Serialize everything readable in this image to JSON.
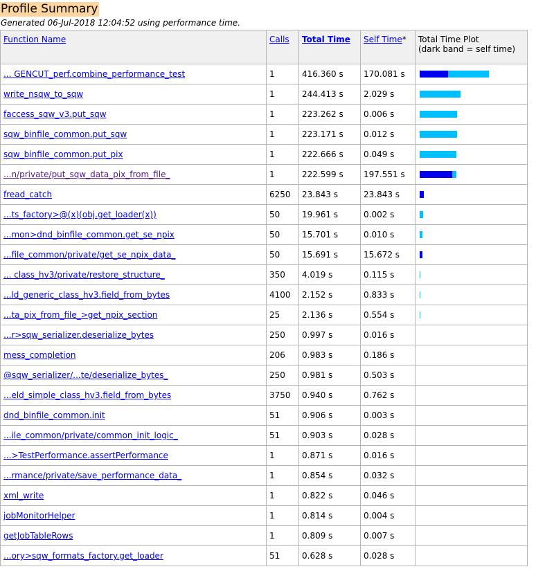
{
  "header": {
    "title": "Profile Summary",
    "generated": "Generated 06-Jul-2018 12:04:52 using performance time."
  },
  "columns": {
    "function_name": "Function Name",
    "calls": "Calls",
    "total_time": "Total Time",
    "self_time": "Self Time",
    "self_time_marker": "*",
    "plot_line1": "Total Time Plot",
    "plot_line2": "(dark band = self time)"
  },
  "colors": {
    "self_band": "#0000ee",
    "total_band": "#00bfff",
    "title_highlight": "#fcd5a0"
  },
  "max_total_time": 416.36,
  "rows": [
    {
      "name": "... GENCUT_perf.combine_performance_test",
      "calls": "1",
      "total_time": "416.360 s",
      "self_time": "170.081 s",
      "total": 416.36,
      "self": 170.081,
      "visited": false
    },
    {
      "name": "write_nsqw_to_sqw",
      "calls": "1",
      "total_time": "244.413 s",
      "self_time": "2.029 s",
      "total": 244.413,
      "self": 2.029,
      "visited": false
    },
    {
      "name": "faccess_sqw_v3.put_sqw",
      "calls": "1",
      "total_time": "223.262 s",
      "self_time": "0.006 s",
      "total": 223.262,
      "self": 0.006,
      "visited": false
    },
    {
      "name": "sqw_binfile_common.put_sqw",
      "calls": "1",
      "total_time": "223.171 s",
      "self_time": "0.012 s",
      "total": 223.171,
      "self": 0.012,
      "visited": false
    },
    {
      "name": "sqw_binfile_common.put_pix",
      "calls": "1",
      "total_time": "222.666 s",
      "self_time": "0.049 s",
      "total": 222.666,
      "self": 0.049,
      "visited": false
    },
    {
      "name": "...n/private/put_sqw_data_pix_from_file_",
      "calls": "1",
      "total_time": "222.599 s",
      "self_time": "197.551 s",
      "total": 222.599,
      "self": 197.551,
      "visited": true
    },
    {
      "name": "fread_catch",
      "calls": "6250",
      "total_time": "23.843 s",
      "self_time": "23.843 s",
      "total": 23.843,
      "self": 23.843,
      "visited": false
    },
    {
      "name": "...ts_factory>@(x)(obj.get_loader(x))",
      "calls": "50",
      "total_time": "19.961 s",
      "self_time": "0.002 s",
      "total": 19.961,
      "self": 0.002,
      "visited": false
    },
    {
      "name": "...mon>dnd_binfile_common.get_se_npix",
      "calls": "50",
      "total_time": "15.701 s",
      "self_time": "0.010 s",
      "total": 15.701,
      "self": 0.01,
      "visited": false
    },
    {
      "name": "...file_common/private/get_se_npix_data_",
      "calls": "50",
      "total_time": "15.691 s",
      "self_time": "15.672 s",
      "total": 15.691,
      "self": 15.672,
      "visited": false
    },
    {
      "name": "... class_hv3/private/restore_structure_",
      "calls": "350",
      "total_time": "4.019 s",
      "self_time": "0.115 s",
      "total": 4.019,
      "self": 0.115,
      "visited": false
    },
    {
      "name": "...ld_generic_class_hv3.field_from_bytes",
      "calls": "4100",
      "total_time": "2.152 s",
      "self_time": "0.833 s",
      "total": 2.152,
      "self": 0.833,
      "visited": false
    },
    {
      "name": "...ta_pix_from_file_>get_npix_section",
      "calls": "25",
      "total_time": "2.136 s",
      "self_time": "0.554 s",
      "total": 2.136,
      "self": 0.554,
      "visited": false
    },
    {
      "name": "...r>sqw_serializer.deserialize_bytes",
      "calls": "250",
      "total_time": "0.997 s",
      "self_time": "0.016 s",
      "total": 0.997,
      "self": 0.016,
      "visited": false
    },
    {
      "name": "mess_completion",
      "calls": "206",
      "total_time": "0.983 s",
      "self_time": "0.186 s",
      "total": 0.983,
      "self": 0.186,
      "visited": false
    },
    {
      "name": "@sqw_serializer/...te/deserialize_bytes_",
      "calls": "250",
      "total_time": "0.981 s",
      "self_time": "0.503 s",
      "total": 0.981,
      "self": 0.503,
      "visited": false
    },
    {
      "name": "...eld_simple_class_hv3.field_from_bytes",
      "calls": "3750",
      "total_time": "0.940 s",
      "self_time": "0.762 s",
      "total": 0.94,
      "self": 0.762,
      "visited": false
    },
    {
      "name": "dnd_binfile_common.init",
      "calls": "51",
      "total_time": "0.906 s",
      "self_time": "0.003 s",
      "total": 0.906,
      "self": 0.003,
      "visited": false
    },
    {
      "name": "...ile_common/private/common_init_logic_",
      "calls": "51",
      "total_time": "0.903 s",
      "self_time": "0.028 s",
      "total": 0.903,
      "self": 0.028,
      "visited": false
    },
    {
      "name": "...>TestPerformance.assertPerformance",
      "calls": "1",
      "total_time": "0.871 s",
      "self_time": "0.016 s",
      "total": 0.871,
      "self": 0.016,
      "visited": false
    },
    {
      "name": "...rmance/private/save_performance_data_",
      "calls": "1",
      "total_time": "0.854 s",
      "self_time": "0.032 s",
      "total": 0.854,
      "self": 0.032,
      "visited": false
    },
    {
      "name": "xml_write",
      "calls": "1",
      "total_time": "0.822 s",
      "self_time": "0.046 s",
      "total": 0.822,
      "self": 0.046,
      "visited": false
    },
    {
      "name": "jobMonitorHelper",
      "calls": "1",
      "total_time": "0.814 s",
      "self_time": "0.004 s",
      "total": 0.814,
      "self": 0.004,
      "visited": false
    },
    {
      "name": "getJobTableRows",
      "calls": "1",
      "total_time": "0.809 s",
      "self_time": "0.007 s",
      "total": 0.809,
      "self": 0.007,
      "visited": false
    },
    {
      "name": "...ory>sqw_formats_factory.get_loader",
      "calls": "51",
      "total_time": "0.628 s",
      "self_time": "0.028 s",
      "total": 0.628,
      "self": 0.028,
      "visited": false
    }
  ]
}
